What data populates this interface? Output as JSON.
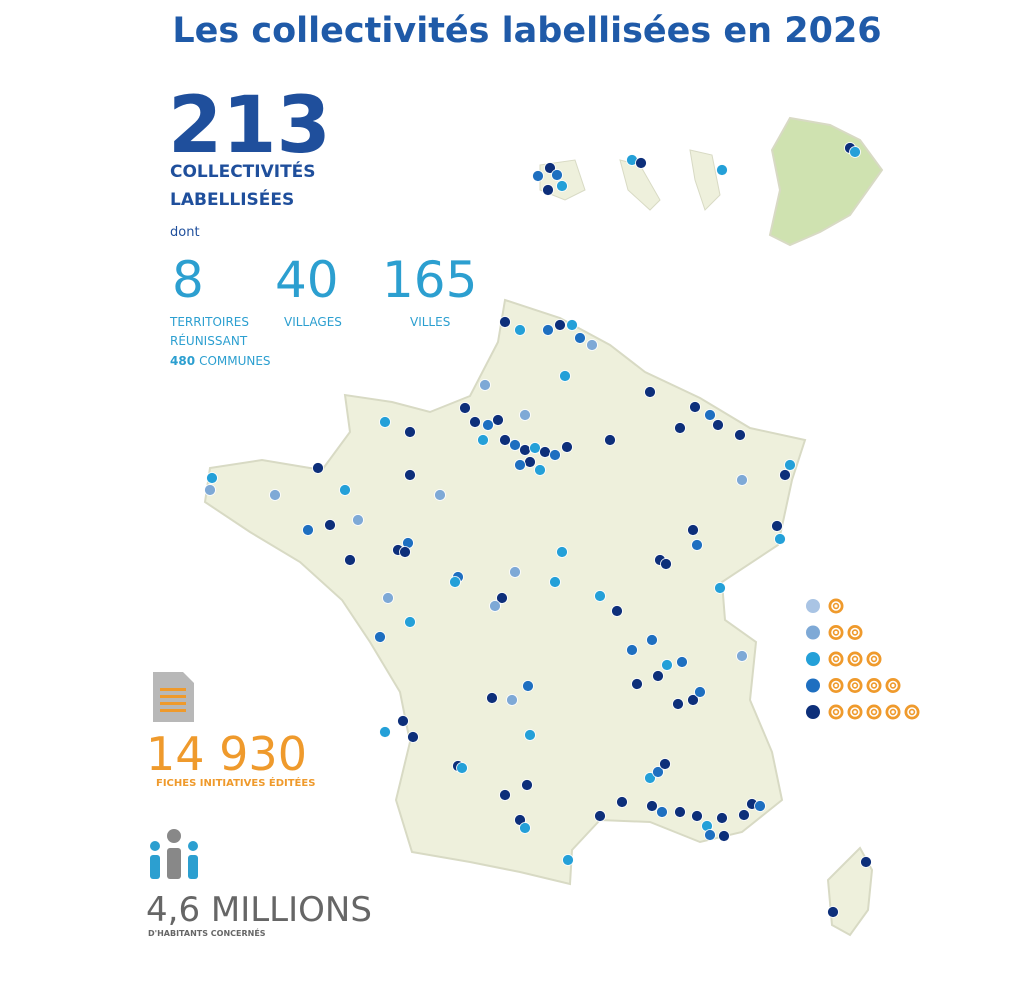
{
  "title": "Les collectivités labellisées en 2026",
  "total": {
    "number": 213,
    "label_lines": [
      "COLLECTIVITÉS",
      "LABELLISÉES"
    ],
    "note": "dont"
  },
  "breakdown": [
    {
      "number": 8,
      "label_lines": [
        "TERRITOIRES",
        "RÉUNISSANT"
      ],
      "communes_number": 480,
      "communes_label": "COMMUNES"
    },
    {
      "number": 40,
      "label_lines": [
        "VILLAGES"
      ]
    },
    {
      "number": 165,
      "label_lines": [
        "VILLES"
      ]
    }
  ],
  "fiches": {
    "number": "14 930",
    "label": "FICHES INITIATIVES ÉDITÉES"
  },
  "habitants": {
    "number": "4,6 MILLIONS",
    "label": "D'HABITANTS CONCERNÉS"
  }
}
